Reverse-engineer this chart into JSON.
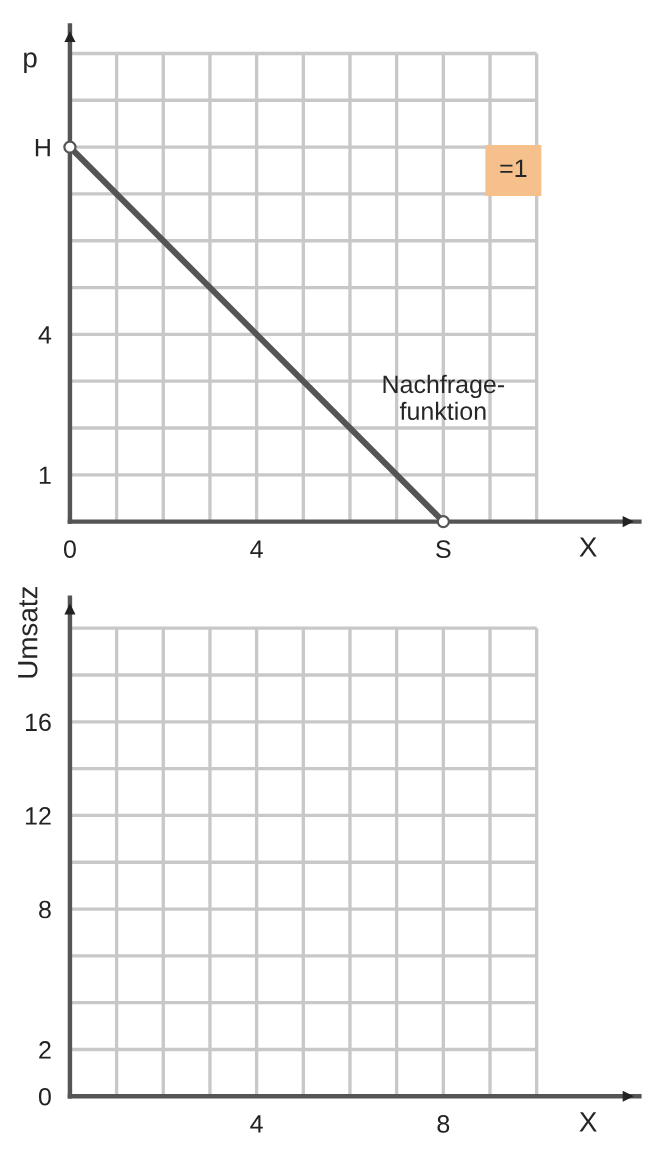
{
  "chart_data": [
    {
      "type": "line",
      "xlabel": "X",
      "ylabel": "p",
      "annotations": [
        "=1",
        "Nachfrage-\nfunktion"
      ],
      "series": [
        {
          "color": "#555555",
          "x": [
            0,
            8
          ],
          "values": [
            8,
            0
          ]
        }
      ],
      "marker": "circle",
      "line_style": "solid",
      "grid": true,
      "xlim": [
        0,
        12.2
      ],
      "ylim": [
        0,
        10.6
      ],
      "xticks": [
        0,
        {
          "value": 1,
          "label": null
        },
        {
          "value": 2,
          "label": null
        },
        {
          "value": 3,
          "label": null
        },
        4,
        {
          "value": 5,
          "label": null
        },
        {
          "value": 6,
          "label": null
        },
        {
          "value": 7,
          "label": null
        },
        {
          "value": 8,
          "label": "S"
        },
        {
          "value": 9,
          "label": null
        },
        {
          "value": 10,
          "label": null
        }
      ],
      "yticks": [
        {
          "value": 0,
          "label": null
        },
        1,
        {
          "value": 2,
          "label": null
        },
        {
          "value": 3,
          "label": null
        },
        4,
        {
          "value": 5,
          "label": null
        },
        {
          "value": 6,
          "label": null
        },
        {
          "value": 7,
          "label": null
        },
        {
          "value": 8,
          "label": "H"
        },
        {
          "value": 9,
          "label": null
        },
        {
          "value": 10,
          "label": null
        }
      ]
    },
    {
      "type": "line",
      "xlabel": "X",
      "ylabel": "Umsatz",
      "grid": true,
      "xlim": [
        0,
        12.2
      ],
      "ylim": [
        0,
        21.3
      ],
      "xticks": [
        {
          "value": 0,
          "label": null
        },
        {
          "value": 1,
          "label": null
        },
        {
          "value": 2,
          "label": null
        },
        {
          "value": 3,
          "label": null
        },
        4,
        {
          "value": 5,
          "label": null
        },
        {
          "value": 6,
          "label": null
        },
        {
          "value": 7,
          "label": null
        },
        8,
        {
          "value": 9,
          "label": null
        },
        {
          "value": 10,
          "label": null
        }
      ],
      "yticks": [
        0,
        2,
        {
          "value": 4,
          "label": null
        },
        {
          "value": 6,
          "label": null
        },
        8,
        {
          "value": 10,
          "label": null
        },
        12,
        {
          "value": 14,
          "label": null
        },
        16,
        {
          "value": 18,
          "label": null
        },
        {
          "value": 20,
          "label": null
        }
      ]
    }
  ]
}
